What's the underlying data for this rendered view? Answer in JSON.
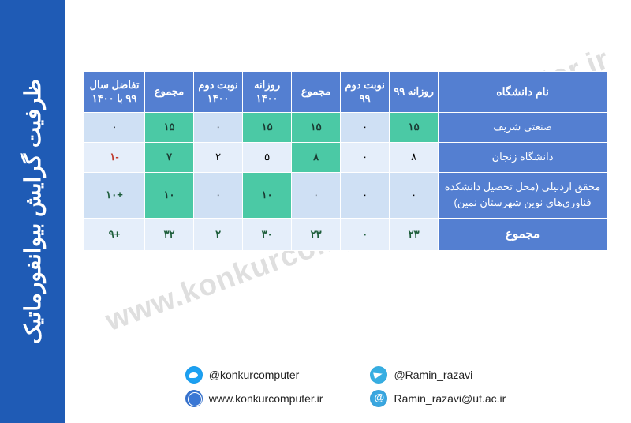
{
  "sidebar_title": "ظرفیت گرایش بیوانفورماتیک",
  "watermark": "www.konkurcomputer.ir",
  "table": {
    "columns": [
      "نام دانشگاه",
      "روزانه ۹۹",
      "نوبت دوم ۹۹",
      "مجموع",
      "روزانه ۱۴۰۰",
      "نوبت دوم ۱۴۰۰",
      "مجموع",
      "تفاضل سال ۹۹ با ۱۴۰۰"
    ],
    "rows": [
      {
        "uni": "صنعتی شریف",
        "cells": [
          "۱۵",
          "۰",
          "۱۵",
          "۱۵",
          "۰",
          "۱۵",
          "۰"
        ],
        "hl": [
          0,
          2,
          3,
          5
        ],
        "cls": ""
      },
      {
        "uni": "دانشگاه زنجان",
        "cells": [
          "۸",
          "۰",
          "۸",
          "۵",
          "۲",
          "۷",
          "-۱"
        ],
        "hl": [
          2,
          5
        ],
        "cls": "neg"
      },
      {
        "uni": "محقق اردبیلی (محل تحصیل دانشکده فناوری‌های نوین شهرستان نمین)",
        "cells": [
          "۰",
          "۰",
          "۰",
          "۱۰",
          "۰",
          "۱۰",
          "+۱۰"
        ],
        "hl": [
          3,
          5
        ],
        "cls": "pos"
      },
      {
        "uni": "مجموع",
        "cells": [
          "۲۳",
          "۰",
          "۲۳",
          "۳۰",
          "۲",
          "۳۲",
          "+۹"
        ],
        "hl": [],
        "cls": "pos",
        "total": true
      }
    ]
  },
  "footer": {
    "left": [
      {
        "icon": "telegram",
        "text": "@Ramin_razavi"
      },
      {
        "icon": "mail",
        "text": "Ramin_razavi@ut.ac.ir"
      }
    ],
    "right": [
      {
        "icon": "twitter",
        "text": "@konkurcomputer"
      },
      {
        "icon": "web",
        "text": "www.konkurcomputer.ir"
      }
    ]
  },
  "colors": {
    "header": "#547fd1",
    "sidebar": "#1f5bb5",
    "rowA": "#cfe0f4",
    "rowB": "#e5eefa",
    "hl": "#4bc9a5"
  }
}
